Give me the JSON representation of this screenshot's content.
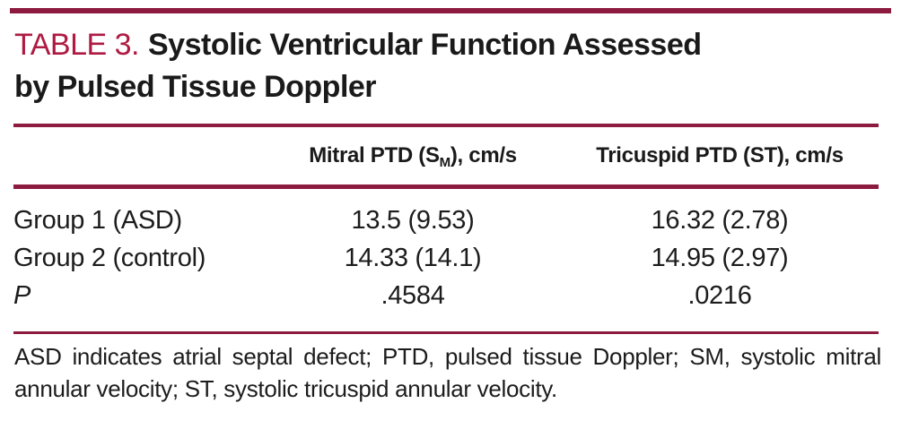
{
  "colors": {
    "accent_crimson": "#ae1a42",
    "rule_maroon": "#8c1b3f",
    "text_black": "#1a1a1a",
    "background": "#ffffff"
  },
  "table": {
    "label": "TABLE 3.",
    "title": "Systolic Ventricular Function Assessed by Pulsed Tissue Doppler",
    "title_line1": "Systolic Ventricular Function Assessed",
    "title_line2": "by Pulsed Tissue Doppler",
    "columns": {
      "mitral": {
        "prefix": "Mitral PTD (S",
        "subscript": "M",
        "suffix": "), cm/s"
      },
      "tricuspid": "Tricuspid PTD (ST), cm/s"
    },
    "rows": [
      {
        "label": "Group 1 (ASD)",
        "mitral": "13.5 (9.53)",
        "tricuspid": "16.32 (2.78)"
      },
      {
        "label": "Group 2 (control)",
        "mitral": "14.33 (14.1)",
        "tricuspid": "14.95 (2.97)"
      },
      {
        "label": "P",
        "mitral": ".4584",
        "tricuspid": ".0216"
      }
    ],
    "footnote": "ASD indicates atrial septal defect; PTD, pulsed tissue Doppler; SM, systolic mitral annular velocity; ST, systolic tricuspid annular velocity."
  }
}
